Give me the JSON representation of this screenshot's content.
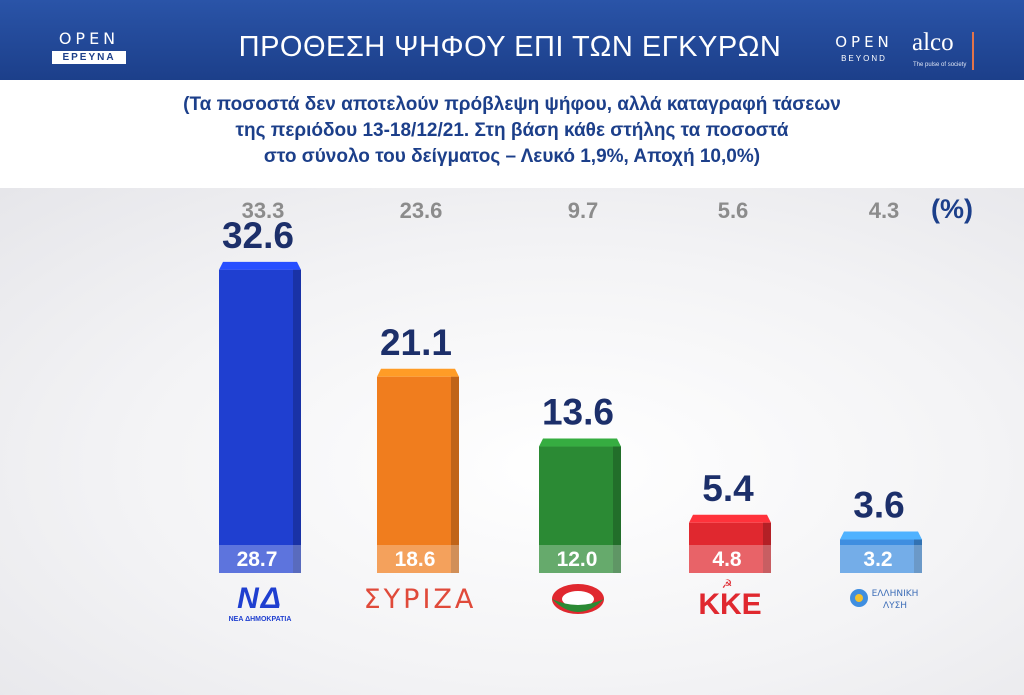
{
  "header": {
    "left_logo_top": "OPEN",
    "left_logo_bottom": "ΕΡΕΥΝΑ",
    "title": "ΠΡΟΘΕΣΗ ΨΗΦΟΥ ΕΠΙ ΤΩΝ ΕΓΚΥΡΩΝ",
    "right_logo_top": "OPEN",
    "right_logo_bottom": "BEYOND",
    "partner_logo": "alco",
    "partner_tagline": "The pulse of society",
    "background_color": "#1c3f8a"
  },
  "note": {
    "line1": "(Τα ποσοστά δεν αποτελούν πρόβλεψη ψήφου, αλλά καταγραφή τάσεων",
    "line2": "της περιόδου 13-18/12/21.  Στη βάση κάθε στήλης τα ποσοστά",
    "line3": "στο σύνολο του δείγματος – Λευκό 1,9%, Αποχή 10,0%)"
  },
  "chart_data": {
    "type": "bar",
    "unit_label": "(%)",
    "ylim": [
      0,
      35
    ],
    "categories": [
      "ΝΔ",
      "ΣΥΡΙΖΑ",
      "ΚΙΝΑΛ",
      "ΚΚΕ",
      "ΕΛΛΗΝΙΚΗ ΛΥΣΗ"
    ],
    "series": [
      {
        "role": "valid_votes",
        "values": [
          32.6,
          21.1,
          13.6,
          5.4,
          3.6
        ]
      },
      {
        "role": "total_sample",
        "values": [
          28.7,
          18.6,
          12.0,
          4.8,
          3.2
        ]
      },
      {
        "role": "previous_election",
        "values": [
          33.3,
          23.6,
          9.7,
          5.6,
          4.3
        ]
      }
    ],
    "colors": [
      "#1f3fd0",
      "#f07d1e",
      "#2b8a34",
      "#e0282f",
      "#3f8ee0"
    ],
    "label_color": "#1c2f6a",
    "previous_label_color": "#8c8c8c"
  },
  "party_logos": [
    {
      "icon": "nd-logo-icon",
      "text": "ΝΔ",
      "caption": "ΝΕΑ ΔΗΜΟΚΡΑΤΙΑ"
    },
    {
      "icon": "syriza-logo-icon",
      "text": "ΣΥΡΙΖΑ",
      "caption": ""
    },
    {
      "icon": "kinal-logo-icon",
      "text": "",
      "caption": ""
    },
    {
      "icon": "kke-logo-icon",
      "text": "ΚΚΕ",
      "caption": ""
    },
    {
      "icon": "elliniki-lysi-logo-icon",
      "text": "ΕΛΛΗΝΙΚΗ",
      "caption": "ΛΥΣΗ"
    }
  ]
}
